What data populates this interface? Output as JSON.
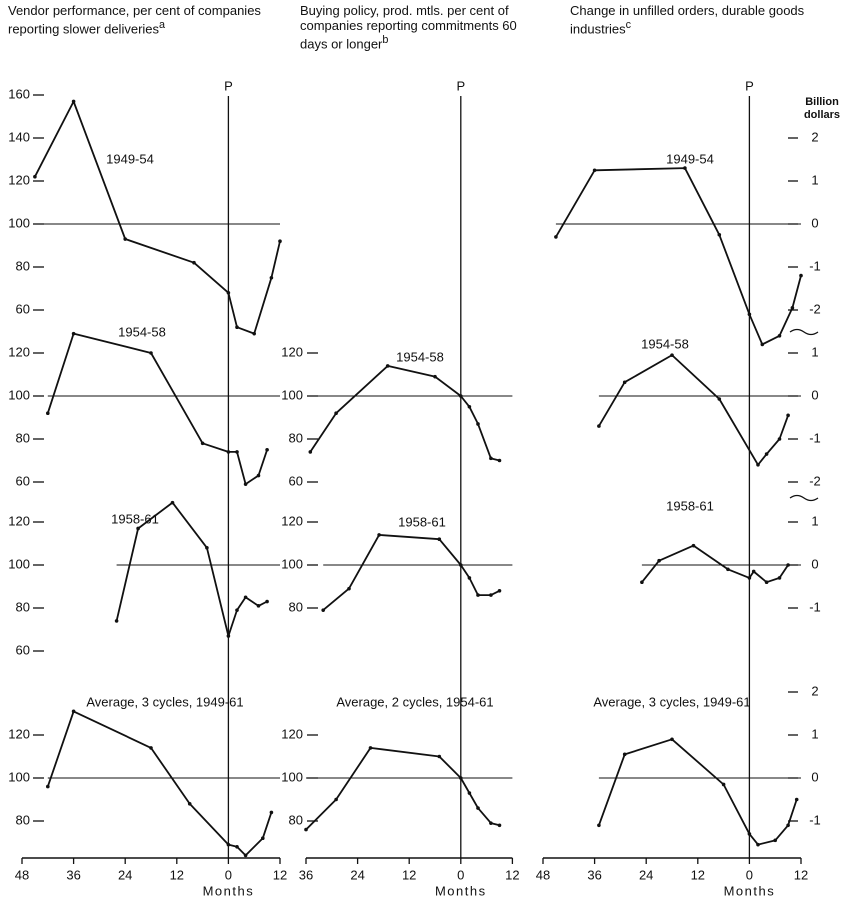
{
  "chart_data": [
    {
      "type": "line",
      "title": "Vendor performance, per cent of companies reporting slower deliveries",
      "note": "a",
      "xlabel": "Months",
      "xlim": [
        -48,
        12
      ],
      "xticks": [
        {
          "value": -48,
          "label": "48"
        },
        {
          "value": -36,
          "label": "36"
        },
        {
          "value": -24,
          "label": "24"
        },
        {
          "value": -12,
          "label": "12"
        },
        0,
        12
      ],
      "peak": {
        "label": "P",
        "x": 0
      },
      "reference": 100,
      "panels": [
        {
          "label": "1949-54",
          "ylim": [
            45,
            165
          ],
          "yticks": [
            60,
            80,
            100,
            120,
            140,
            160
          ],
          "x": [
            -45,
            -36,
            -24,
            -8,
            0,
            2,
            6,
            10,
            12
          ],
          "values": [
            122,
            157,
            93,
            82,
            68,
            52,
            49,
            75,
            92
          ]
        },
        {
          "label": "1954-58",
          "ylim": [
            55,
            130
          ],
          "yticks": [
            60,
            80,
            100,
            120
          ],
          "x": [
            -42,
            -36,
            -18,
            -6,
            0,
            2,
            4,
            7,
            9
          ],
          "values": [
            92,
            129,
            120,
            78,
            74,
            74,
            59,
            63,
            75
          ]
        },
        {
          "label": "1958-61",
          "ylim": [
            55,
            135
          ],
          "yticks": [
            60,
            80,
            100,
            120
          ],
          "x": [
            -26,
            -21,
            -13,
            -5,
            0,
            2,
            4,
            7,
            9
          ],
          "values": [
            74,
            117,
            129,
            108,
            67,
            79,
            85,
            81,
            83
          ]
        },
        {
          "label": "Average, 3 cycles, 1949-61",
          "ylim": [
            60,
            135
          ],
          "yticks": [
            80,
            100,
            120
          ],
          "x": [
            -42,
            -36,
            -18,
            -9,
            0,
            2,
            4,
            8,
            10
          ],
          "values": [
            96,
            131,
            114,
            88,
            69,
            68,
            64,
            72,
            84
          ]
        }
      ]
    },
    {
      "type": "line",
      "title": "Buying policy, prod. mtls. per cent of companies reporting commitments 60 days or longer",
      "note": "b",
      "xlabel": "Months",
      "xlim": [
        -36,
        12
      ],
      "xticks": [
        {
          "value": -36,
          "label": "36"
        },
        {
          "value": -24,
          "label": "24"
        },
        {
          "value": -12,
          "label": "12"
        },
        0,
        12
      ],
      "peak": {
        "label": "P",
        "x": 0
      },
      "reference": 100,
      "panels": [
        {
          "label": "1954-58",
          "ylim": [
            55,
            130
          ],
          "yticks": [
            60,
            80,
            100,
            120
          ],
          "x": [
            -35,
            -29,
            -17,
            -6,
            0,
            2,
            4,
            7,
            9
          ],
          "values": [
            74,
            92,
            114,
            109,
            100,
            95,
            87,
            71,
            70
          ]
        },
        {
          "label": "1958-61",
          "ylim": [
            55,
            135
          ],
          "yticks": [
            80,
            100,
            120
          ],
          "x": [
            -32,
            -26,
            -19,
            -5,
            0,
            2,
            4,
            7,
            9
          ],
          "values": [
            79,
            89,
            114,
            112,
            100,
            94,
            86,
            86,
            88
          ]
        },
        {
          "label": "Average, 2 cycles, 1954-61",
          "ylim": [
            60,
            135
          ],
          "yticks": [
            80,
            100,
            120
          ],
          "x": [
            -36,
            -29,
            -21,
            -5,
            0,
            2,
            4,
            7,
            9
          ],
          "values": [
            76,
            90,
            114,
            110,
            100,
            93,
            86,
            79,
            78
          ]
        }
      ]
    },
    {
      "type": "line",
      "title": "Change in unfilled orders, durable goods industries",
      "note": "c",
      "xlabel": "Months",
      "ylabel": "Billion dollars",
      "xlim": [
        -48,
        12
      ],
      "xticks": [
        {
          "value": -48,
          "label": "48"
        },
        {
          "value": -36,
          "label": "36"
        },
        {
          "value": -24,
          "label": "24"
        },
        {
          "value": -12,
          "label": "12"
        },
        0,
        12
      ],
      "peak": {
        "label": "P",
        "x": 0
      },
      "reference": 0,
      "panels": [
        {
          "label": "1949-54",
          "ylim": [
            -3,
            2.5
          ],
          "yticks": [
            2,
            1,
            0,
            -1,
            -2
          ],
          "x": [
            -45,
            -36,
            -15,
            -7,
            0,
            3,
            7,
            10,
            12
          ],
          "values": [
            -0.3,
            1.25,
            1.3,
            -0.25,
            -2.1,
            -2.8,
            -2.6,
            -1.95,
            -1.2
          ]
        },
        {
          "label": "1954-58",
          "ylim": [
            -2.3,
            1.5
          ],
          "yticks": [
            1,
            0,
            -1,
            -2
          ],
          "x": [
            -35,
            -29,
            -18,
            -7,
            2,
            4,
            7,
            9
          ],
          "values": [
            -0.7,
            0.32,
            0.95,
            -0.07,
            -1.6,
            -1.35,
            -1.0,
            -0.45
          ]
        },
        {
          "label": "1958-61",
          "ylim": [
            -1.5,
            1.5
          ],
          "yticks": [
            1,
            0,
            -1
          ],
          "x": [
            -25,
            -21,
            -13,
            -5,
            0,
            1,
            4,
            7,
            9
          ],
          "values": [
            -0.4,
            0.1,
            0.45,
            -0.1,
            -0.3,
            -0.15,
            -0.4,
            -0.3,
            0
          ]
        },
        {
          "label": "Average, 3 cycles, 1949-61",
          "ylim": [
            -2,
            2.5
          ],
          "yticks": [
            2,
            1,
            0,
            -1
          ],
          "x": [
            -35,
            -29,
            -18,
            -6,
            0,
            2,
            6,
            9,
            11
          ],
          "values": [
            -1.1,
            0.55,
            0.9,
            -0.15,
            -1.3,
            -1.55,
            -1.45,
            -1.1,
            -0.5
          ]
        }
      ]
    }
  ]
}
